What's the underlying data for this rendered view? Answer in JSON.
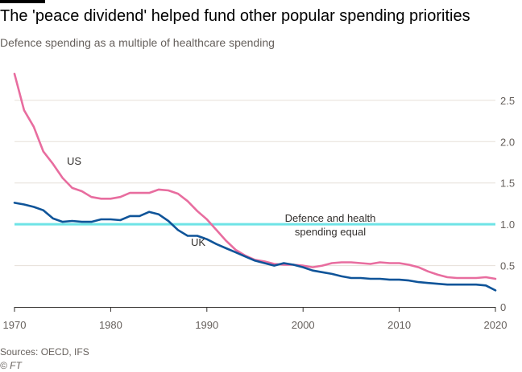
{
  "chart_data": {
    "type": "line",
    "title": "The 'peace dividend' helped fund other popular spending priorities",
    "subtitle": "Defence spending as a multiple of healthcare spending",
    "xlim": [
      1970,
      2020
    ],
    "ylim": [
      0,
      2.8
    ],
    "x_ticks": [
      1970,
      1980,
      1990,
      2000,
      2010,
      2020
    ],
    "y_ticks": [
      0,
      0.5,
      1.0,
      1.5,
      2.0,
      2.5
    ],
    "y_tick_labels": [
      "0",
      "0.5",
      "1.0",
      "1.5",
      "2.0",
      "2.5"
    ],
    "grid": true,
    "reference_line": {
      "y": 1.0,
      "label_line1": "Defence and health",
      "label_line2": "spending equal",
      "color": "#6ee3e6"
    },
    "series": [
      {
        "name": "US",
        "color": "#e86d9f",
        "x": [
          1970,
          1971,
          1972,
          1973,
          1974,
          1975,
          1976,
          1977,
          1978,
          1979,
          1980,
          1981,
          1982,
          1983,
          1984,
          1985,
          1986,
          1987,
          1988,
          1989,
          1990,
          1991,
          1992,
          1993,
          1994,
          1995,
          1996,
          1997,
          1998,
          1999,
          2000,
          2001,
          2002,
          2003,
          2004,
          2005,
          2006,
          2007,
          2008,
          2009,
          2010,
          2011,
          2012,
          2013,
          2014,
          2015,
          2016,
          2017,
          2018,
          2019,
          2020
        ],
        "values": [
          2.82,
          2.38,
          2.18,
          1.88,
          1.73,
          1.56,
          1.44,
          1.4,
          1.33,
          1.31,
          1.31,
          1.33,
          1.38,
          1.38,
          1.38,
          1.42,
          1.41,
          1.37,
          1.28,
          1.16,
          1.06,
          0.93,
          0.8,
          0.69,
          0.62,
          0.57,
          0.55,
          0.52,
          0.51,
          0.51,
          0.5,
          0.48,
          0.5,
          0.53,
          0.54,
          0.54,
          0.53,
          0.52,
          0.54,
          0.53,
          0.53,
          0.51,
          0.48,
          0.43,
          0.39,
          0.36,
          0.35,
          0.35,
          0.35,
          0.36,
          0.34
        ]
      },
      {
        "name": "UK",
        "color": "#0f5499",
        "x": [
          1970,
          1971,
          1972,
          1973,
          1974,
          1975,
          1976,
          1977,
          1978,
          1979,
          1980,
          1981,
          1982,
          1983,
          1984,
          1985,
          1986,
          1987,
          1988,
          1989,
          1990,
          1991,
          1992,
          1993,
          1994,
          1995,
          1996,
          1997,
          1998,
          1999,
          2000,
          2001,
          2002,
          2003,
          2004,
          2005,
          2006,
          2007,
          2008,
          2009,
          2010,
          2011,
          2012,
          2013,
          2014,
          2015,
          2016,
          2017,
          2018,
          2019,
          2020
        ],
        "values": [
          1.26,
          1.24,
          1.21,
          1.17,
          1.07,
          1.03,
          1.04,
          1.03,
          1.03,
          1.06,
          1.06,
          1.05,
          1.1,
          1.1,
          1.15,
          1.12,
          1.04,
          0.93,
          0.86,
          0.86,
          0.82,
          0.76,
          0.71,
          0.66,
          0.61,
          0.56,
          0.53,
          0.5,
          0.53,
          0.51,
          0.48,
          0.44,
          0.42,
          0.4,
          0.37,
          0.35,
          0.35,
          0.34,
          0.34,
          0.33,
          0.33,
          0.32,
          0.3,
          0.29,
          0.28,
          0.27,
          0.27,
          0.27,
          0.27,
          0.26,
          0.2
        ]
      }
    ],
    "annotations": [
      {
        "text": "US",
        "series": "US",
        "x": 1976.2,
        "y": 1.72
      },
      {
        "text": "UK",
        "series": "UK",
        "x": 1989.1,
        "y": 0.74
      }
    ]
  },
  "footer": {
    "sources": "Sources: OECD, IFS",
    "credit": "© FT"
  }
}
